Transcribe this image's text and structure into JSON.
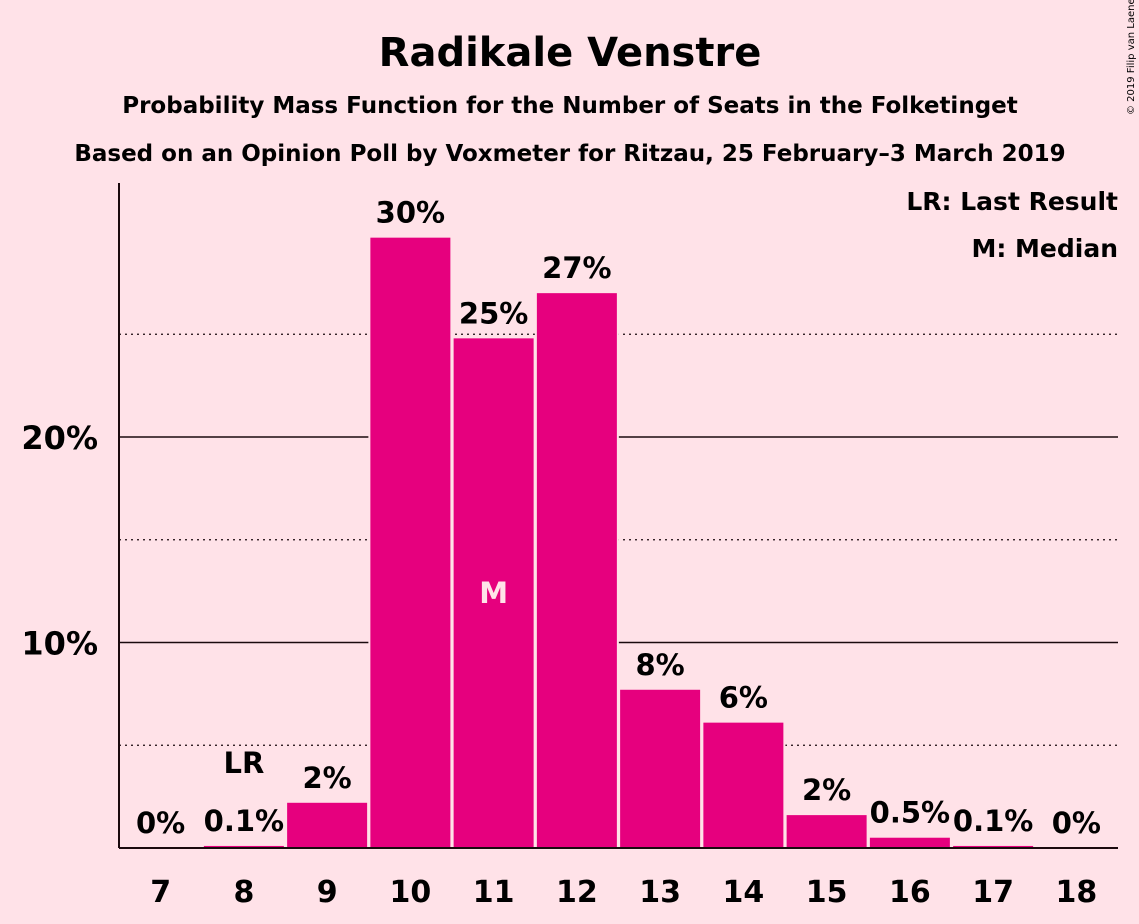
{
  "chart_data": {
    "type": "bar",
    "title": "Radikale Venstre",
    "subtitle": "Probability Mass Function for the Number of Seats in the Folketinget",
    "subtitle2": "Based on an Opinion Poll by Voxmeter for Ritzau, 25 February–3 March 2019",
    "copyright": "© 2019 Filip van Laenen",
    "legend": [
      "LR: Last Result",
      "M: Median"
    ],
    "categories": [
      "7",
      "8",
      "9",
      "10",
      "11",
      "12",
      "13",
      "14",
      "15",
      "16",
      "17",
      "18"
    ],
    "values": [
      0,
      0.1,
      2.2,
      29.7,
      24.8,
      27.0,
      7.7,
      6.1,
      1.6,
      0.5,
      0.1,
      0
    ],
    "labels": [
      "0%",
      "0.1%",
      "2%",
      "30%",
      "25%",
      "27%",
      "8%",
      "6%",
      "2%",
      "0.5%",
      "0.1%",
      "0%"
    ],
    "last_result": {
      "category": "8",
      "label": "LR"
    },
    "median": {
      "category": "11",
      "label": "M"
    },
    "yticks": [
      {
        "value": 10,
        "label": "10%"
      },
      {
        "value": 20,
        "label": "20%"
      }
    ],
    "minor_gridlines": [
      5,
      15,
      25
    ],
    "ylim": [
      0,
      31
    ],
    "colors": {
      "bar": "#E6007E",
      "background": "#FFE2E8",
      "text": "#1a0a0e"
    }
  }
}
